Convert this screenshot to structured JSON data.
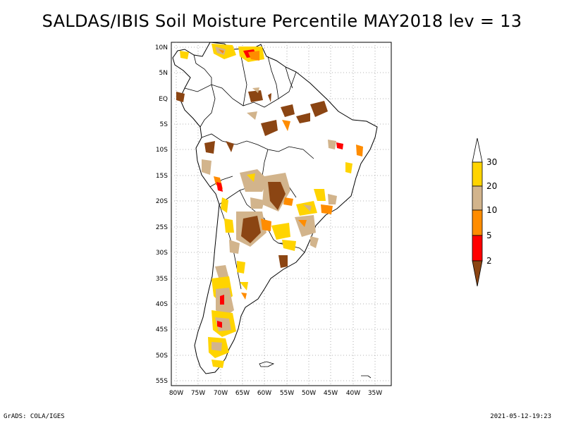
{
  "title": "SALDAS/IBIS Soil Moisture Percentile MAY2018 lev = 13",
  "footer": {
    "left": "GrADS: COLA/IGES",
    "right": "2021-05-12-19:23"
  },
  "map": {
    "lat_labels": [
      "10N",
      "5N",
      "EQ",
      "5S",
      "10S",
      "15S",
      "20S",
      "25S",
      "30S",
      "35S",
      "40S",
      "45S",
      "50S",
      "55S"
    ],
    "lon_labels": [
      "80W",
      "75W",
      "70W",
      "65W",
      "60W",
      "55W",
      "50W",
      "45W",
      "40W",
      "35W"
    ],
    "region": "South America"
  },
  "colorbar": {
    "labels": [
      "30",
      "20",
      "10",
      "5",
      "2"
    ],
    "colors": {
      "above_30": "#ffffff",
      "20_30": "#ffd400",
      "10_20": "#d2b48c",
      "5_10": "#ff8c00",
      "2_5": "#ff0000",
      "below_2": "#8b4513"
    }
  }
}
